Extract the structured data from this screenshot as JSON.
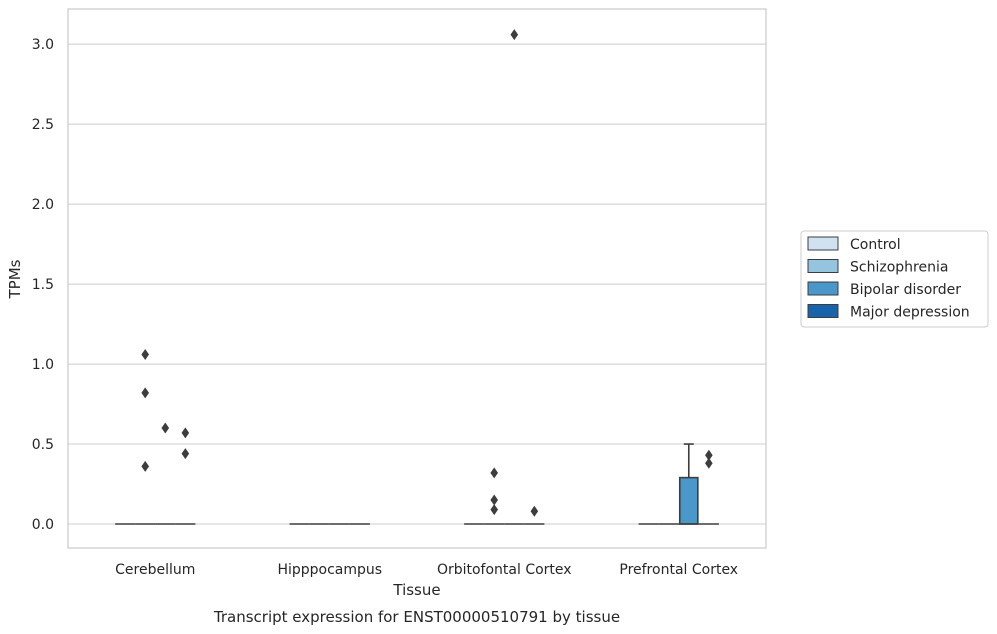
{
  "chart_data": {
    "type": "box",
    "title": "Transcript expression for ENST00000510791 by tissue",
    "xlabel": "Tissue",
    "ylabel": "TPMs",
    "ylim": [
      -0.15,
      3.22
    ],
    "yticks": [
      0.0,
      0.5,
      1.0,
      1.5,
      2.0,
      2.5,
      3.0
    ],
    "ytick_labels": [
      "0.0",
      "0.5",
      "1.0",
      "1.5",
      "2.0",
      "2.5",
      "3.0"
    ],
    "categories": [
      "Cerebellum",
      "Hipppocampus",
      "Orbitofontal Cortex",
      "Prefrontal Cortex"
    ],
    "grid": "horizontal",
    "legend_position": "right",
    "series": [
      {
        "name": "Control",
        "color": "#d0e1f2",
        "boxes": [
          {
            "category": "Cerebellum",
            "q1": 0,
            "median": 0,
            "q3": 0,
            "whisker_low": 0,
            "whisker_high": 0,
            "outliers": []
          },
          {
            "category": "Hipppocampus",
            "q1": 0,
            "median": 0,
            "q3": 0,
            "whisker_low": 0,
            "whisker_high": 0,
            "outliers": []
          },
          {
            "category": "Orbitofontal Cortex",
            "q1": 0,
            "median": 0,
            "q3": 0,
            "whisker_low": 0,
            "whisker_high": 0,
            "outliers": []
          },
          {
            "category": "Prefrontal Cortex",
            "q1": 0,
            "median": 0,
            "q3": 0,
            "whisker_low": 0,
            "whisker_high": 0,
            "outliers": []
          }
        ]
      },
      {
        "name": "Schizophrenia",
        "color": "#94c4df",
        "boxes": [
          {
            "category": "Cerebellum",
            "q1": 0,
            "median": 0,
            "q3": 0,
            "whisker_low": 0,
            "whisker_high": 0,
            "outliers": [
              1.06,
              0.82,
              0.36
            ]
          },
          {
            "category": "Hipppocampus",
            "q1": 0,
            "median": 0,
            "q3": 0,
            "whisker_low": 0,
            "whisker_high": 0,
            "outliers": []
          },
          {
            "category": "Orbitofontal Cortex",
            "q1": 0,
            "median": 0,
            "q3": 0,
            "whisker_low": 0,
            "whisker_high": 0,
            "outliers": [
              0.32,
              0.15,
              0.09
            ]
          },
          {
            "category": "Prefrontal Cortex",
            "q1": 0,
            "median": 0,
            "q3": 0,
            "whisker_low": 0,
            "whisker_high": 0,
            "outliers": []
          }
        ]
      },
      {
        "name": "Bipolar disorder",
        "color": "#4a98c9",
        "boxes": [
          {
            "category": "Cerebellum",
            "q1": 0,
            "median": 0,
            "q3": 0,
            "whisker_low": 0,
            "whisker_high": 0,
            "outliers": [
              0.6
            ]
          },
          {
            "category": "Hipppocampus",
            "q1": 0,
            "median": 0,
            "q3": 0,
            "whisker_low": 0,
            "whisker_high": 0,
            "outliers": []
          },
          {
            "category": "Orbitofontal Cortex",
            "q1": 0,
            "median": 0,
            "q3": 0,
            "whisker_low": 0,
            "whisker_high": 0,
            "outliers": [
              3.06
            ]
          },
          {
            "category": "Prefrontal Cortex",
            "q1": 0,
            "median": 0,
            "q3": 0.29,
            "whisker_low": 0,
            "whisker_high": 0.5,
            "outliers": []
          }
        ]
      },
      {
        "name": "Major depression",
        "color": "#1764ab",
        "boxes": [
          {
            "category": "Cerebellum",
            "q1": 0,
            "median": 0,
            "q3": 0,
            "whisker_low": 0,
            "whisker_high": 0,
            "outliers": [
              0.57,
              0.44
            ]
          },
          {
            "category": "Hipppocampus",
            "q1": 0,
            "median": 0,
            "q3": 0,
            "whisker_low": 0,
            "whisker_high": 0,
            "outliers": []
          },
          {
            "category": "Orbitofontal Cortex",
            "q1": 0,
            "median": 0,
            "q3": 0,
            "whisker_low": 0,
            "whisker_high": 0,
            "outliers": [
              0.08
            ]
          },
          {
            "category": "Prefrontal Cortex",
            "q1": 0,
            "median": 0,
            "q3": 0,
            "whisker_low": 0,
            "whisker_high": 0,
            "outliers": [
              0.43,
              0.38
            ]
          }
        ]
      }
    ]
  }
}
